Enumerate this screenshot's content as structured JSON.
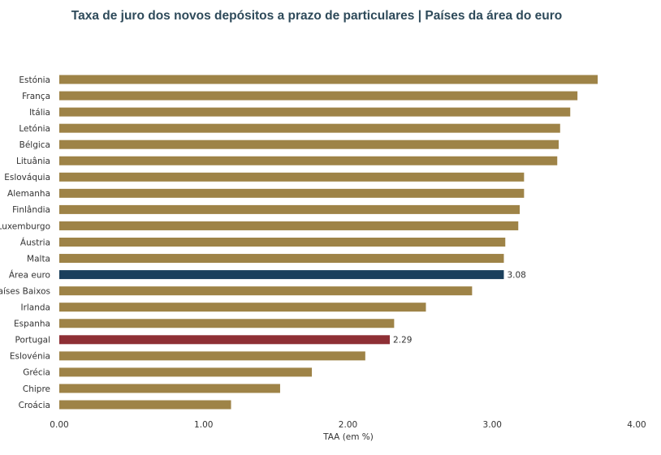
{
  "chart_data": {
    "type": "bar",
    "orientation": "horizontal",
    "title": "Taxa de juro dos novos depósitos a prazo de particulares | Países da área do euro",
    "xlabel": "TAA (em %)",
    "ylabel": "",
    "xlim": [
      0,
      4
    ],
    "xticks": [
      {
        "value": 0,
        "label": "0.00"
      },
      {
        "value": 1,
        "label": "1.00"
      },
      {
        "value": 2,
        "label": "2.00"
      },
      {
        "value": 3,
        "label": "3.00"
      },
      {
        "value": 4,
        "label": "4.00"
      }
    ],
    "grid": false,
    "categories": [
      "Estónia",
      "França",
      "Itália",
      "Letónia",
      "Bélgica",
      "Lituânia",
      "Eslováquia",
      "Alemanha",
      "Finlândia",
      "Luxemburgo",
      "Áustria",
      "Malta",
      "Área euro",
      "Países Baixos",
      "Irlanda",
      "Espanha",
      "Portugal",
      "Eslovénia",
      "Grécia",
      "Chipre",
      "Croácia"
    ],
    "values": [
      3.73,
      3.59,
      3.54,
      3.47,
      3.46,
      3.45,
      3.22,
      3.22,
      3.19,
      3.18,
      3.09,
      3.08,
      3.08,
      2.86,
      2.54,
      2.32,
      2.29,
      2.12,
      1.75,
      1.53,
      1.19
    ],
    "data_labels": {
      "Área euro": "3.08",
      "Portugal": "2.29"
    },
    "colors": {
      "default": "#9e8347",
      "Área euro": "#1a3f5c",
      "Portugal": "#8e2f35"
    }
  }
}
